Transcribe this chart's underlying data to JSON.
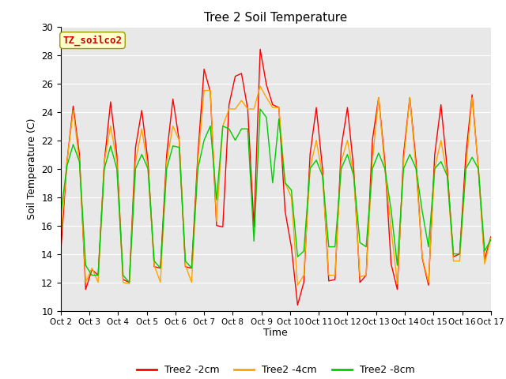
{
  "title": "Tree 2 Soil Temperature",
  "ylabel": "Soil Temperature (C)",
  "xlabel": "Time",
  "annotation": "TZ_soilco2",
  "ylim": [
    10,
    30
  ],
  "yticks": [
    10,
    12,
    14,
    16,
    18,
    20,
    22,
    24,
    26,
    28,
    30
  ],
  "xtick_labels": [
    "Oct 2",
    "Oct 3",
    "Oct 4",
    "Oct 5",
    "Oct 6",
    "Oct 7",
    "Oct 8",
    "Oct 9",
    "Oct 10",
    "Oct 11",
    "Oct 12",
    "Oct 13",
    "Oct 14",
    "Oct 15",
    "Oct 16",
    "Oct 17"
  ],
  "bg_color": "#e8e8e8",
  "fig_bg": "#ffffff",
  "line_colors": {
    "2cm": "#ff0000",
    "4cm": "#ffa500",
    "8cm": "#00cc00"
  },
  "legend_labels": [
    "Tree2 -2cm",
    "Tree2 -4cm",
    "Tree2 -8cm"
  ],
  "t2cm": [
    14.1,
    20.5,
    24.4,
    21.0,
    11.5,
    12.9,
    12.5,
    20.5,
    24.7,
    21.0,
    12.2,
    12.0,
    21.5,
    24.1,
    20.5,
    13.1,
    13.0,
    21.0,
    24.9,
    22.0,
    13.1,
    13.0,
    21.0,
    27.0,
    25.4,
    16.0,
    15.9,
    24.5,
    26.5,
    26.7,
    24.2,
    15.9,
    28.4,
    25.9,
    24.5,
    24.3,
    17.0,
    14.5,
    10.4,
    12.0,
    21.0,
    24.3,
    20.0,
    12.1,
    12.2,
    21.5,
    24.3,
    20.0,
    12.0,
    12.5,
    22.0,
    25.0,
    20.5,
    13.3,
    11.5,
    21.0,
    25.0,
    20.5,
    13.7,
    11.8,
    21.0,
    24.5,
    20.0,
    13.8,
    14.0,
    21.0,
    25.2,
    20.0,
    13.6,
    15.2
  ],
  "t4cm": [
    15.2,
    20.5,
    24.1,
    20.5,
    12.0,
    13.0,
    12.0,
    20.5,
    23.0,
    20.5,
    12.0,
    11.9,
    20.5,
    22.8,
    20.0,
    13.2,
    12.0,
    20.5,
    23.0,
    22.0,
    13.2,
    12.0,
    20.5,
    25.5,
    25.5,
    16.3,
    23.0,
    24.2,
    24.2,
    24.8,
    24.2,
    24.2,
    25.8,
    25.0,
    24.3,
    24.3,
    19.0,
    18.0,
    11.8,
    12.5,
    20.0,
    22.0,
    19.5,
    12.5,
    12.5,
    20.5,
    22.0,
    19.5,
    12.4,
    12.5,
    20.5,
    25.0,
    20.0,
    15.8,
    11.9,
    20.5,
    25.0,
    20.0,
    13.8,
    12.0,
    20.0,
    22.0,
    19.5,
    13.5,
    13.5,
    20.0,
    25.0,
    20.0,
    13.3,
    15.1
  ],
  "t8cm": [
    16.8,
    20.2,
    21.7,
    20.5,
    13.2,
    12.5,
    12.5,
    20.0,
    21.6,
    20.0,
    12.5,
    12.0,
    20.0,
    21.0,
    20.0,
    13.5,
    13.0,
    20.0,
    21.6,
    21.5,
    13.5,
    13.0,
    20.0,
    22.0,
    23.0,
    17.8,
    23.0,
    22.8,
    22.0,
    22.8,
    22.8,
    14.9,
    24.2,
    23.6,
    19.0,
    23.5,
    19.0,
    18.5,
    13.8,
    14.2,
    20.0,
    20.6,
    19.5,
    14.5,
    14.5,
    20.0,
    21.0,
    19.5,
    14.8,
    14.5,
    20.0,
    21.1,
    20.0,
    17.1,
    13.2,
    20.0,
    21.0,
    20.0,
    17.0,
    14.5,
    20.0,
    20.5,
    19.5,
    14.0,
    14.0,
    20.0,
    20.8,
    20.0,
    14.2,
    15.0
  ]
}
